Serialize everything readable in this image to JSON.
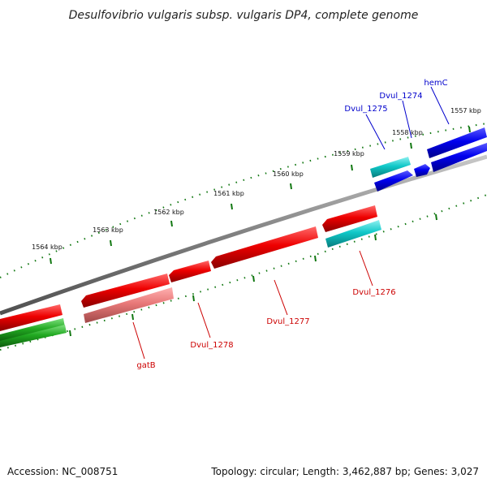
{
  "title": "Desulfovibrio vulgaris subsp. vulgaris DP4, complete genome",
  "footer": {
    "accession": "Accession: NC_008751",
    "summary": "Topology: circular; Length: 3,462,887 bp; Genes: 3,027"
  },
  "ticks": [
    "1557 kbp",
    "1558 kbp",
    "1559 kbp",
    "1560 kbp",
    "1561 kbp",
    "1562 kbp",
    "1563 kbp",
    "1564 kbp"
  ],
  "genes": {
    "hemC": "hemC",
    "dvul_1274": "Dvul_1274",
    "dvul_1275": "Dvul_1275",
    "dvul_1276": "Dvul_1276",
    "dvul_1277": "Dvul_1277",
    "dvul_1278": "Dvul_1278",
    "gatB": "gatB"
  },
  "colors": {
    "forward_blue": "#0000e0",
    "forward_cyan": "#00c8c8",
    "reverse_red": "#ee0000",
    "rna_pink": "#e87878",
    "green": "#22aa22",
    "backbone": "#808080",
    "tick_green": "#117711",
    "label_blue": "#0000cc",
    "label_red": "#cc0000"
  }
}
